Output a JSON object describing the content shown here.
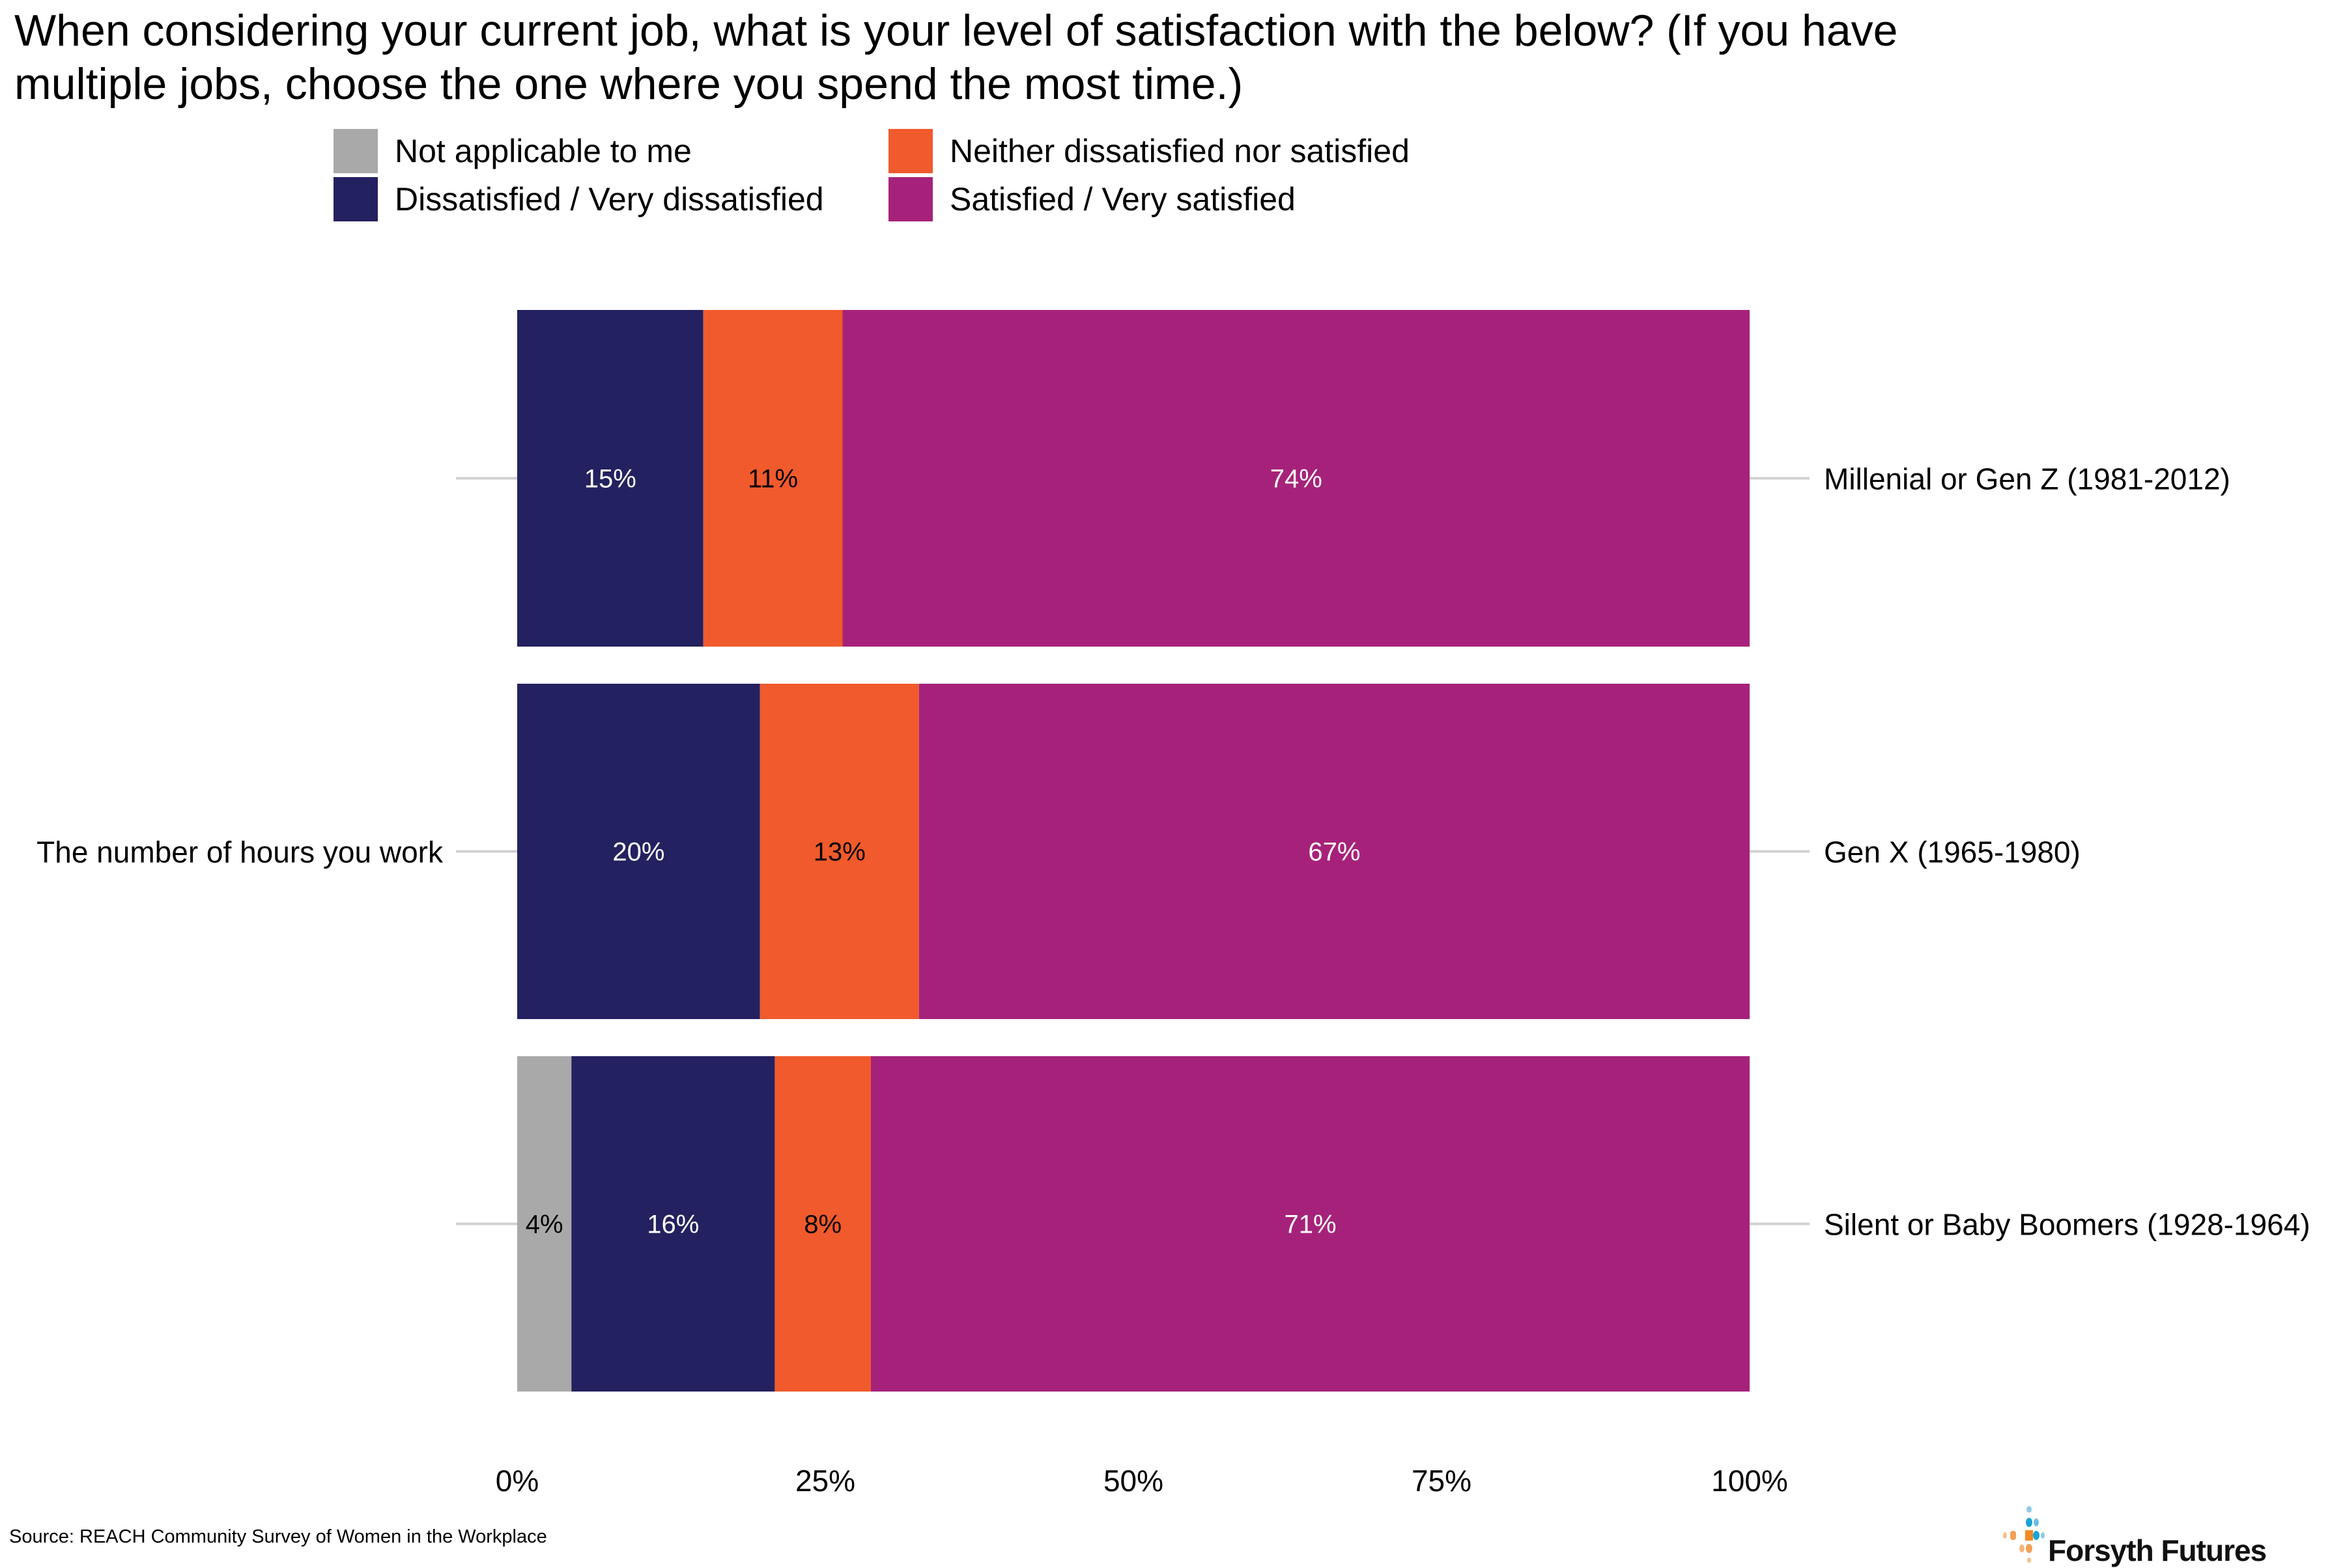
{
  "chart_data": {
    "type": "bar",
    "orientation": "horizontal",
    "stacked": true,
    "title": "When considering your current job, what is your level of satisfaction with the below? (If you have multiple jobs, choose the one where you spend the most time.)",
    "left_category_label": "The number of hours you work",
    "categories": [
      "Millenial or Gen Z (1981-2012)",
      "Gen X (1965-1980)",
      "Silent or Baby Boomers (1928-1964)"
    ],
    "series": [
      {
        "name": "Not applicable to me",
        "color": "#a9a9a9",
        "label_color": "#000000",
        "values": [
          0,
          0,
          4.4
        ]
      },
      {
        "name": "Dissatisfied / Very dissatisfied",
        "color": "#242160",
        "label_color": "#ffffff",
        "values": [
          15.1,
          19.7,
          16.5
        ]
      },
      {
        "name": "Neither dissatisfied nor satisfied",
        "color": "#f05a2c",
        "label_color": "#000000",
        "values": [
          11.3,
          12.9,
          7.8
        ]
      },
      {
        "name": "Satisfied / Very satisfied",
        "color": "#a6227a",
        "label_color": "#ffffff",
        "values": [
          73.6,
          67.4,
          71.3
        ]
      }
    ],
    "data_labels": [
      [
        "",
        "15%",
        "11%",
        "74%"
      ],
      [
        "",
        "20%",
        "13%",
        "67%"
      ],
      [
        "4%",
        "16%",
        "8%",
        "71%"
      ]
    ],
    "xlim": [
      0,
      100
    ],
    "xticks": [
      0,
      25,
      50,
      75,
      100
    ],
    "xtick_labels": [
      "0%",
      "25%",
      "50%",
      "75%",
      "100%"
    ],
    "xlabel": "",
    "ylabel": "",
    "grid": false,
    "legend_position": "top"
  },
  "legend": [
    {
      "label": "Not applicable to me",
      "color": "#a9a9a9"
    },
    {
      "label": "Neither dissatisfied nor satisfied",
      "color": "#f05a2c"
    },
    {
      "label": "Dissatisfied / Very dissatisfied",
      "color": "#242160"
    },
    {
      "label": "Satisfied / Very satisfied",
      "color": "#a6227a"
    }
  ],
  "source": "Source: REACH Community Survey of Women in the Workplace",
  "logo": {
    "text": "Forsyth Futures",
    "name": "forsyth-futures-logo"
  }
}
